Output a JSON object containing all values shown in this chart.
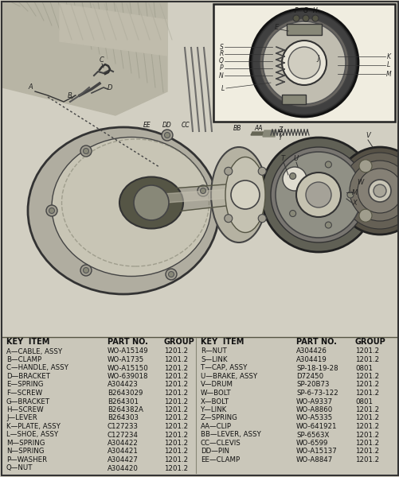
{
  "bg_color": "#d4d0c4",
  "diagram_bg": "#c8c5b8",
  "inset_bg": "#e8e5d8",
  "border_color": "#444444",
  "text_color": "#111111",
  "table_bg": "#ccc9bc",
  "figsize": [
    5.02,
    6.0
  ],
  "dpi": 100,
  "table_left": [
    [
      "A—CABLE, ASSY",
      "WO-A15149",
      "1201.2"
    ],
    [
      "B—CLAMP",
      "WO-A1735",
      "1201.2"
    ],
    [
      "C—HANDLE, ASSY",
      "WO-A15150",
      "1201.2"
    ],
    [
      "D—BRACKET",
      "WO-639018",
      "1201.2"
    ],
    [
      "E—SPRING",
      "A304423",
      "1201.2"
    ],
    [
      "F—SCREW",
      "B2643029",
      "1201.2"
    ],
    [
      "G—BRACKET",
      "B264301",
      "1201.2"
    ],
    [
      "H—SCREW",
      "B264382A",
      "1201.2"
    ],
    [
      "J—LEVER",
      "B264303",
      "1201.2"
    ],
    [
      "K—PLATE, ASSY",
      "C127233",
      "1201.2"
    ],
    [
      "L—SHOE, ASSY",
      "C127234",
      "1201.2"
    ],
    [
      "M—SPRING",
      "A304422",
      "1201.2"
    ],
    [
      "N—SPRING",
      "A304421",
      "1201.2"
    ],
    [
      "P—WASHER",
      "A304427",
      "1201.2"
    ],
    [
      "Q—NUT",
      "A304420",
      "1201.2"
    ]
  ],
  "table_right": [
    [
      "R—NUT",
      "A304426",
      "1201.2"
    ],
    [
      "S—LINK",
      "A304419",
      "1201.2"
    ],
    [
      "T—CAP, ASSY",
      "SP-18-19-28",
      "0801"
    ],
    [
      "U—BRAKE, ASSY",
      "D72450",
      "1201.2"
    ],
    [
      "V—DRUM",
      "SP-20B73",
      "1201.2"
    ],
    [
      "W—BOLT",
      "SP-6-73-122",
      "1201.2"
    ],
    [
      "X—BOLT",
      "WO-A9337",
      "0801"
    ],
    [
      "Y—LINK",
      "WO-A8860",
      "1201.2"
    ],
    [
      "Z—SPRING",
      "WO-A5335",
      "1201.2"
    ],
    [
      "AA—CLIP",
      "WO-641921",
      "1201.2"
    ],
    [
      "BB—LEVER, ASSY",
      "SP-6563X",
      "1201.2"
    ],
    [
      "CC—CLEVIS",
      "WO-6599",
      "1201.2"
    ],
    [
      "DD—PIN",
      "WO-A15137",
      "1201.2"
    ],
    [
      "EE—CLAMP",
      "WO-A8847",
      "1201.2"
    ]
  ]
}
